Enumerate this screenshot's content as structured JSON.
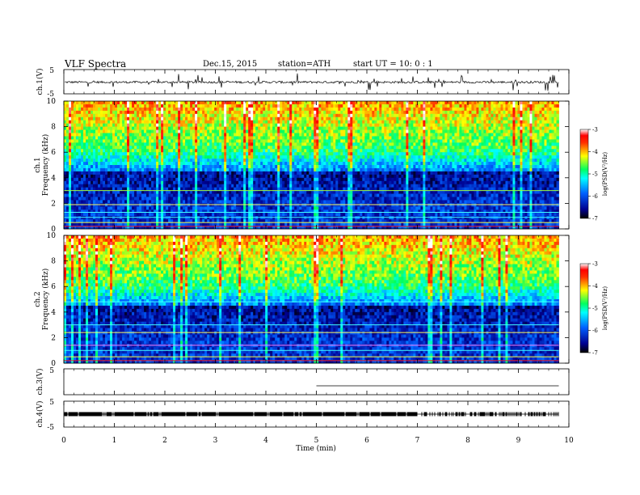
{
  "header": {
    "title": "VLF  Spectra",
    "date": "Dec.15, 2015",
    "station": "station=ATH",
    "start": "start  UT  =    10: 0   : 1"
  },
  "chart_data": [
    {
      "type": "line",
      "panel": "ch1-waveform",
      "ylabel": "ch.1(V)",
      "ylim": [
        -5,
        5
      ],
      "yticks": [
        "5",
        "-5"
      ],
      "xlim": [
        0,
        10
      ],
      "data_xlim": [
        0,
        9.8
      ],
      "baseline": -0.2,
      "color": "#000000"
    },
    {
      "type": "heatmap",
      "panel": "ch1-spectrogram",
      "ylabel": "ch.1\nFrequency (kHz)",
      "ylim": [
        0,
        10
      ],
      "yticks": [
        "0",
        "2",
        "4",
        "6",
        "8",
        "10"
      ],
      "xlim": [
        0,
        10
      ],
      "data_xlim": [
        0,
        9.8
      ],
      "colorbar": {
        "label": "log(PSD(V²/Hz)",
        "range": [
          -7,
          -3
        ],
        "ticks": [
          "-3",
          "-4",
          "-5",
          "-6",
          "-7"
        ]
      },
      "scale": "jet"
    },
    {
      "type": "heatmap",
      "panel": "ch2-spectrogram",
      "ylabel": "ch.2\nFrequency (kHz)",
      "ylim": [
        0,
        10
      ],
      "yticks": [
        "0",
        "2",
        "4",
        "6",
        "8",
        "10"
      ],
      "xlim": [
        0,
        10
      ],
      "data_xlim": [
        0,
        9.8
      ],
      "colorbar": {
        "label": "log(PSD(V²/Hz)",
        "range": [
          -7,
          -3
        ],
        "ticks": [
          "-3",
          "-4",
          "-5",
          "-6",
          "-7"
        ]
      },
      "scale": "jet"
    },
    {
      "type": "line",
      "panel": "ch3-waveform",
      "ylabel": "ch.3(V)",
      "ylim": [
        -5,
        5
      ],
      "yticks": [
        "5",
        "-5"
      ],
      "xlim": [
        0,
        10
      ],
      "data_xlim": [
        5,
        9.8
      ],
      "baseline": 0
    },
    {
      "type": "line",
      "panel": "ch4-waveform",
      "ylabel": "ch.4(V)",
      "ylim": [
        -5,
        5
      ],
      "yticks": [
        "5",
        "-5"
      ],
      "xlim": [
        0,
        10
      ],
      "data_xlim": [
        0,
        9.8
      ],
      "baseline": 0
    }
  ],
  "xaxis": {
    "label": "Time (min)",
    "ticks": [
      "0",
      "1",
      "2",
      "3",
      "4",
      "5",
      "6",
      "7",
      "8",
      "9",
      "10"
    ]
  }
}
